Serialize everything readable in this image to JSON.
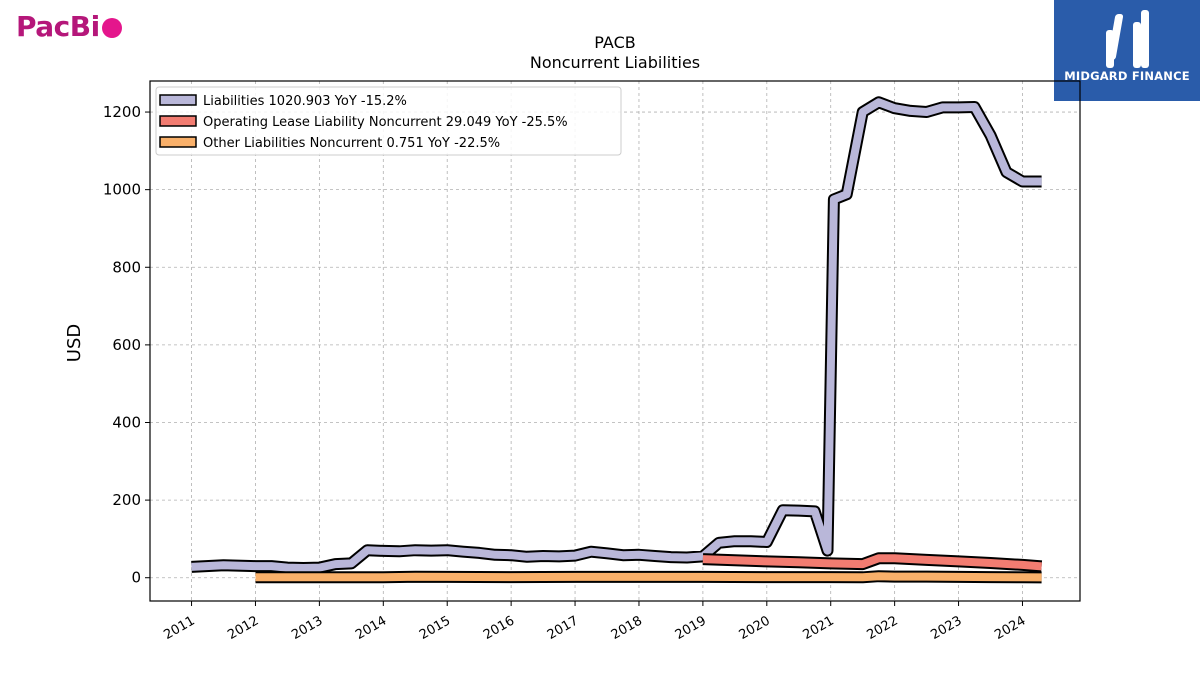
{
  "logos": {
    "left_text": "PacBi",
    "right_text": "MIDGARD FINANCE",
    "left_color": "#b5177a",
    "left_dot_color": "#e4168c",
    "right_bg": "#2a5caa"
  },
  "chart_data": {
    "type": "line",
    "title": "PACB",
    "subtitle": "Noncurrent  Liabilities",
    "ylabel": "USD",
    "xlabel": "",
    "ylim": [
      -60,
      1280
    ],
    "xlim": [
      2010.35,
      2024.9
    ],
    "yticks": [
      0,
      200,
      400,
      600,
      800,
      1000,
      1200
    ],
    "xticks": [
      "2011",
      "2012",
      "2013",
      "2014",
      "2015",
      "2016",
      "2017",
      "2018",
      "2019",
      "2020",
      "2021",
      "2022",
      "2023",
      "2024"
    ],
    "grid": true,
    "legend_position": "top-left",
    "series": [
      {
        "name": "Liabilities  1020.903 YoY -15.2%",
        "color": "#b9b7d9",
        "x": [
          2011.0,
          2011.5,
          2012.0,
          2012.25,
          2012.5,
          2012.75,
          2013.0,
          2013.25,
          2013.5,
          2013.75,
          2014.0,
          2014.25,
          2014.5,
          2014.75,
          2015.0,
          2015.25,
          2015.5,
          2015.75,
          2016.0,
          2016.25,
          2016.5,
          2016.75,
          2017.0,
          2017.25,
          2017.5,
          2017.75,
          2018.0,
          2018.25,
          2018.5,
          2018.75,
          2019.0,
          2019.25,
          2019.5,
          2019.75,
          2020.0,
          2020.25,
          2020.5,
          2020.75,
          2020.95,
          2021.05,
          2021.25,
          2021.5,
          2021.75,
          2022.0,
          2022.25,
          2022.5,
          2022.75,
          2023.0,
          2023.25,
          2023.5,
          2023.75,
          2024.0,
          2024.3
        ],
        "values": [
          28,
          32,
          30,
          30,
          26,
          25,
          26,
          35,
          37,
          71,
          69,
          68,
          71,
          70,
          71,
          67,
          64,
          59,
          58,
          54,
          56,
          55,
          57,
          67,
          63,
          58,
          59,
          56,
          53,
          52,
          55,
          90,
          94,
          94,
          92,
          174,
          173,
          171,
          70,
          975,
          988,
          1200,
          1225,
          1210,
          1203,
          1200,
          1212,
          1212,
          1213,
          1140,
          1045,
          1020.9,
          1020.9
        ]
      },
      {
        "name": "Operating Lease Liability Noncurrent  29.049 YoY -25.5%",
        "color": "#f27c71",
        "x": [
          2019.0,
          2019.5,
          2020.0,
          2020.5,
          2021.0,
          2021.5,
          2021.75,
          2022.0,
          2022.5,
          2023.0,
          2023.5,
          2024.0,
          2024.3
        ],
        "values": [
          48,
          45,
          42,
          40,
          37,
          35,
          50,
          50,
          46,
          42,
          38,
          33,
          29.05
        ]
      },
      {
        "name": "Other Liabilities Noncurrent  0.751 YoY -22.5%",
        "color": "#f9b06a",
        "x": [
          2012.0,
          2013.0,
          2014.0,
          2014.5,
          2015.0,
          2016.0,
          2017.0,
          2018.0,
          2019.0,
          2020.0,
          2021.0,
          2021.5,
          2021.75,
          2022.0,
          2022.5,
          2023.0,
          2023.5,
          2024.0,
          2024.3
        ],
        "values": [
          1,
          1,
          1,
          2.5,
          2,
          1.5,
          2,
          2,
          2,
          1.5,
          1.5,
          1,
          4,
          3,
          3,
          2,
          1.5,
          1,
          0.75
        ]
      }
    ]
  }
}
